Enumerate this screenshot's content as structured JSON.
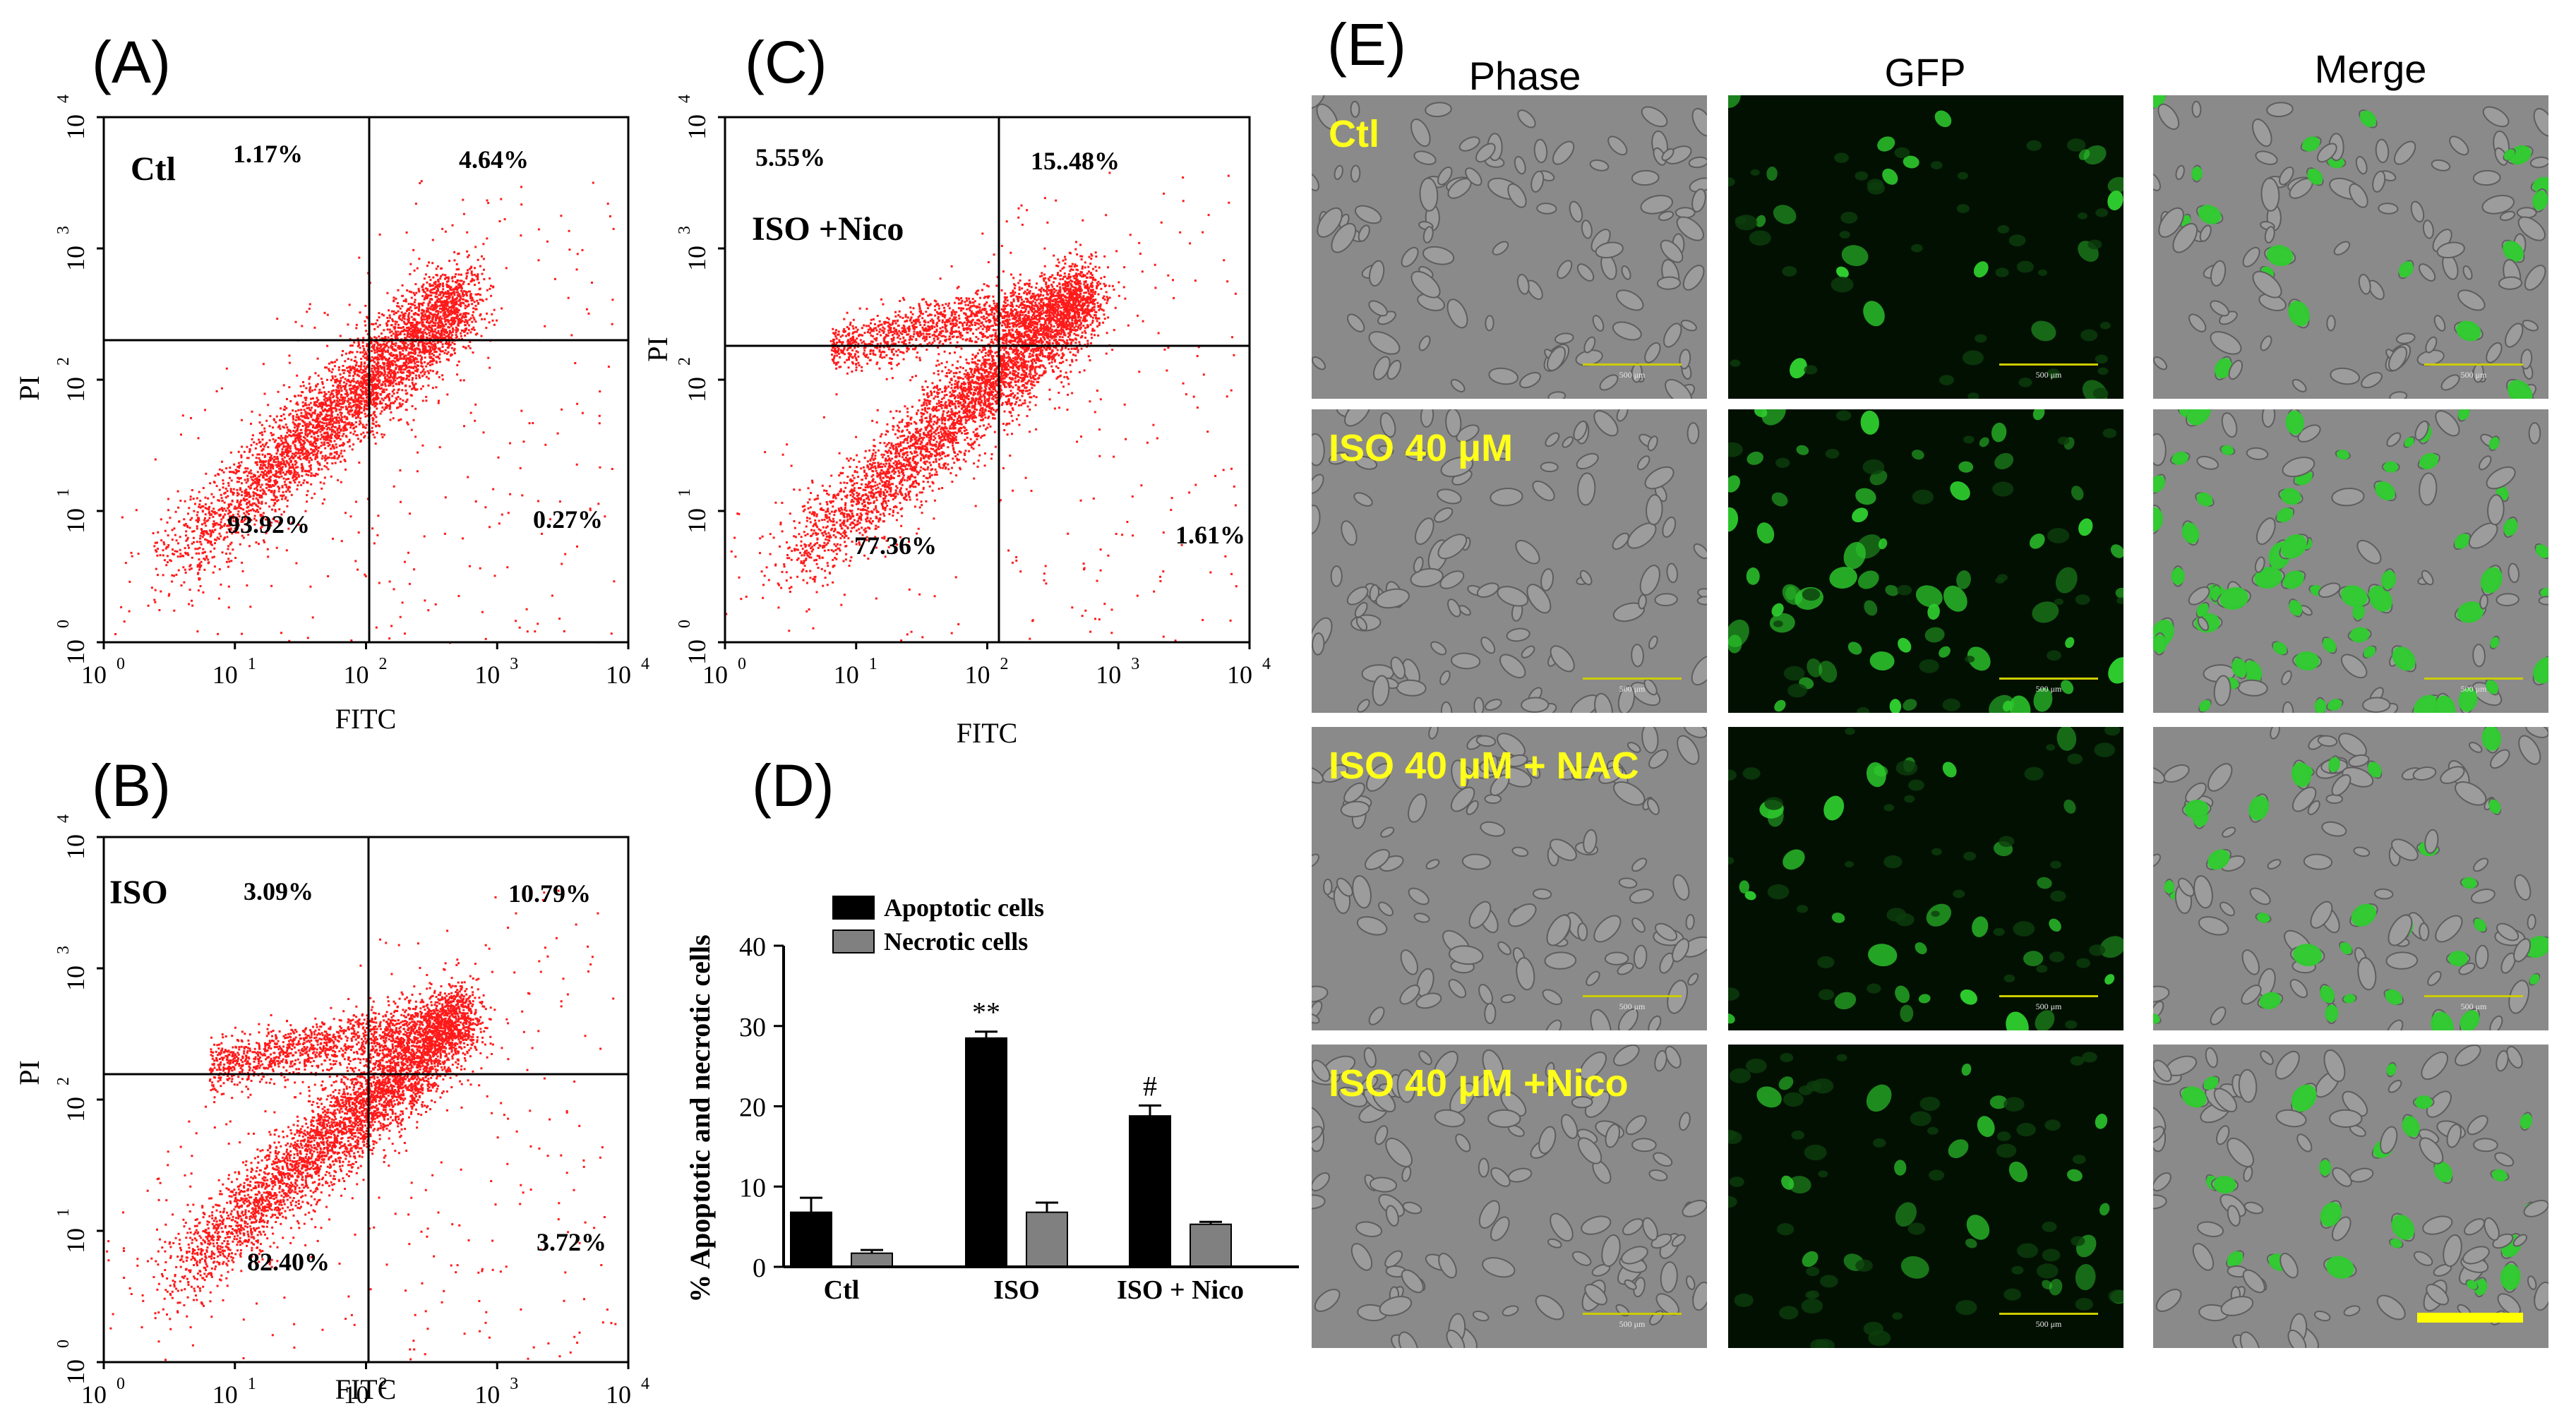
{
  "panels": {
    "A": {
      "letter": "(A)",
      "label": "Ctl",
      "q_ul": "1.17%",
      "q_ur": "4.64%",
      "q_ll": "93.92%",
      "q_lr": "0.27%"
    },
    "B": {
      "letter": "(B)",
      "label": "ISO",
      "q_ul": "3.09%",
      "q_ur": "10.79%",
      "q_ll": "82.40%",
      "q_lr": "3.72%"
    },
    "C": {
      "letter": "(C)",
      "label": "ISO +Nico",
      "q_ul": "5.55%",
      "q_ur": "15..48%",
      "q_ll": "77.36%",
      "q_lr": "1.61%"
    },
    "D": {
      "letter": "(D)"
    },
    "E": {
      "letter": "(E)"
    }
  },
  "flow_axes": {
    "x_label": "FITC",
    "y_label": "PI",
    "ticks": [
      {
        "base": "10",
        "exp": "0"
      },
      {
        "base": "10",
        "exp": "1"
      },
      {
        "base": "10",
        "exp": "2"
      },
      {
        "base": "10",
        "exp": "3"
      },
      {
        "base": "10",
        "exp": "4"
      }
    ]
  },
  "chart_data": {
    "type": "bar",
    "categories": [
      "Ctl",
      "ISO",
      "ISO + Nico"
    ],
    "series": [
      {
        "name": "Apoptotic cells",
        "values": [
          6.8,
          28.5,
          18.8
        ],
        "errors": [
          1.8,
          0.8,
          1.3
        ],
        "color": "#000000"
      },
      {
        "name": "Necrotic cells",
        "values": [
          1.7,
          6.8,
          5.3
        ],
        "errors": [
          0.4,
          1.2,
          0.3
        ],
        "color": "#808080"
      }
    ],
    "annotations": [
      {
        "category": "ISO",
        "text": "**"
      },
      {
        "category": "ISO + Nico",
        "text": "#"
      }
    ],
    "ylabel": "% Apoptotic and necrotic cells",
    "ylim": [
      0,
      40
    ],
    "yticks": [
      "0",
      "10",
      "20",
      "30",
      "40"
    ],
    "legend_placement": "top-left"
  },
  "microscopy": {
    "columns": [
      "Phase",
      "GFP",
      "Merge"
    ],
    "rows": [
      {
        "label": "Ctl",
        "density": 0.12
      },
      {
        "label": "ISO 40 μM",
        "density": 0.55
      },
      {
        "label": "ISO 40 μM + NAC",
        "density": 0.3
      },
      {
        "label": "ISO 40 μM +Nico",
        "density": 0.25
      }
    ],
    "scale_label": "500 μm",
    "colors": {
      "phase_bg": "#8a8a8a",
      "gfp_bg": "#021002",
      "gfp": "#2ecc2e",
      "label": "#ffff1a",
      "scalebar": "#cccc00"
    }
  }
}
